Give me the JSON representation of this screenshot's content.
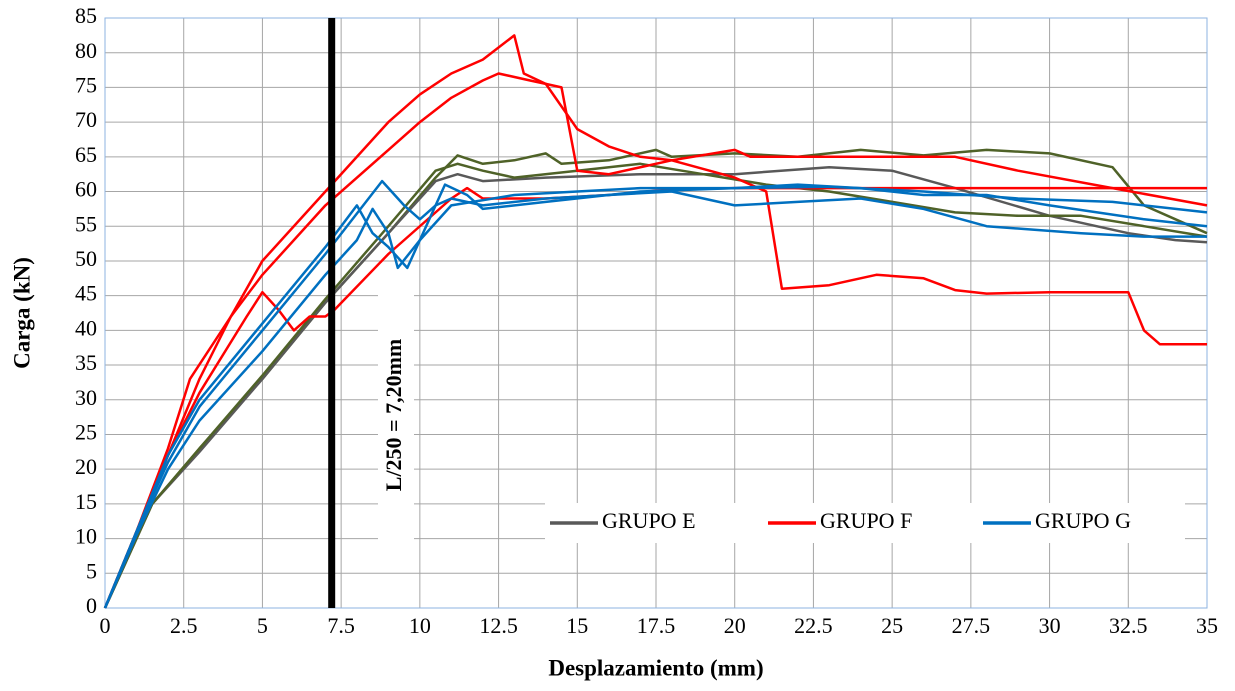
{
  "chart_data": {
    "type": "line",
    "x_label": "Desplazamiento (mm)",
    "y_label": "Carga (kN)",
    "xlim": [
      0,
      35
    ],
    "xticks": [
      0,
      2.5,
      5,
      7.5,
      10,
      12.5,
      15,
      17.5,
      20,
      22.5,
      25,
      27.5,
      30,
      32.5,
      35
    ],
    "ylim": [
      0,
      85
    ],
    "yticks": [
      0,
      5,
      10,
      15,
      20,
      25,
      30,
      35,
      40,
      45,
      50,
      55,
      60,
      65,
      70,
      75,
      80,
      85
    ],
    "grid": true,
    "legend": "lower right",
    "vline": {
      "x": 7.2,
      "label": "L/250 = 7,20mm",
      "color": "#000000"
    },
    "series": [
      {
        "name": "GRUPO E",
        "color": "#595959",
        "curves": [
          {
            "color": "#4f6228",
            "x": [
              0,
              1,
              1.5,
              3,
              5,
              7,
              9,
              10.5,
              11.2,
              12,
              13,
              14,
              14.5,
              16,
              17.5,
              18,
              20,
              22,
              24,
              26,
              28,
              30,
              32,
              33,
              34,
              35
            ],
            "values": [
              0,
              10,
              15,
              23,
              33,
              44,
              54,
              62,
              65.2,
              64,
              64.5,
              65.5,
              64,
              64.5,
              66,
              65,
              65.5,
              65,
              66,
              65.2,
              66,
              65.5,
              63.5,
              58,
              56,
              54
            ]
          },
          {
            "color": "#595959",
            "x": [
              0,
              1,
              1.5,
              3,
              5,
              7,
              9,
              10.5,
              11.2,
              12,
              14,
              17,
              20,
              23,
              25,
              27,
              30,
              32.5,
              34,
              35
            ],
            "values": [
              0,
              10,
              15,
              22.5,
              33,
              44,
              54,
              61.5,
              62.5,
              61.5,
              62,
              62.5,
              62.5,
              63.5,
              63,
              60.5,
              56.5,
              54,
              53,
              52.7
            ]
          },
          {
            "color": "#4f6228",
            "x": [
              0,
              1.5,
              3,
              5,
              7,
              9,
              10.5,
              11.2,
              12,
              13,
              15,
              17,
              19,
              21,
              23,
              25,
              27,
              29,
              31,
              33,
              35
            ],
            "values": [
              0,
              15,
              23,
              33.5,
              44.5,
              55,
              63,
              64,
              63,
              62,
              63,
              64,
              62.5,
              61,
              60,
              58.5,
              57,
              56.5,
              56.5,
              55,
              53.5
            ]
          }
        ]
      },
      {
        "name": "GRUPO F",
        "color": "#ff0000",
        "curves": [
          {
            "color": "#ff0000",
            "x": [
              0,
              1,
              2,
              3,
              4.5,
              5,
              5.5,
              6,
              6.5,
              7,
              7.3,
              9,
              11,
              11.5,
              12,
              14,
              16,
              18,
              20,
              25,
              30,
              35
            ],
            "values": [
              0,
              11,
              22,
              31,
              42,
              45.5,
              43,
              40,
              42,
              42,
              43,
              51,
              59,
              60.5,
              59,
              59,
              59.5,
              60.3,
              60.5,
              60.5,
              60.5,
              60.5
            ]
          },
          {
            "color": "#ff0000",
            "x": [
              0,
              1,
              2,
              2.7,
              4,
              5,
              7,
              9,
              10,
              11,
              12,
              12.5,
              13.5,
              14,
              14.5,
              15,
              16,
              18,
              20,
              20.5,
              23,
              25,
              27,
              29,
              32,
              35
            ],
            "values": [
              0,
              11,
              23,
              33,
              42,
              48,
              58,
              66,
              70,
              73.5,
              76,
              77,
              76,
              75.5,
              75,
              63,
              62.5,
              64.5,
              66,
              65,
              65,
              65,
              65,
              63,
              60.5,
              58
            ]
          },
          {
            "color": "#ff0000",
            "x": [
              0,
              1,
              2,
              3,
              4,
              5,
              7,
              9,
              10,
              11,
              12,
              13,
              13.3,
              14,
              15,
              16,
              17,
              18,
              20,
              21,
              21.5,
              23,
              24.5,
              26,
              27,
              28,
              30,
              32.5,
              33,
              33.5,
              35
            ],
            "values": [
              0,
              11,
              22,
              33,
              42,
              50,
              60,
              70,
              74,
              77,
              79,
              82.5,
              77,
              75.5,
              69,
              66.5,
              65,
              64.5,
              62,
              60,
              46,
              46.5,
              48,
              47.5,
              45.8,
              45.3,
              45.5,
              45.5,
              40,
              38,
              38
            ]
          }
        ]
      },
      {
        "name": "GRUPO G",
        "color": "#0070c0",
        "curves": [
          {
            "color": "#0070c0",
            "x": [
              0,
              1,
              2,
              3,
              5,
              7,
              8,
              8.5,
              9,
              9.3,
              10,
              11,
              13,
              15,
              17,
              20,
              22,
              24,
              26,
              28,
              30,
              33,
              35
            ],
            "values": [
              0,
              10.5,
              20,
              27,
              37,
              48,
              53,
              57.5,
              54,
              49,
              53,
              58,
              59.5,
              60,
              60.5,
              60.5,
              61,
              60.5,
              59.5,
              59.5,
              58,
              56,
              55
            ]
          },
          {
            "color": "#0070c0",
            "x": [
              0,
              1,
              2,
              3,
              5,
              7,
              8.8,
              9.5,
              10,
              10.5,
              11,
              12,
              14,
              16,
              18,
              20,
              22,
              24,
              26,
              28,
              31,
              33,
              35
            ],
            "values": [
              0,
              11,
              21,
              29,
              40,
              51,
              61.5,
              58,
              56,
              58,
              59,
              58,
              59,
              59.5,
              60,
              58,
              58.5,
              59,
              57.5,
              55,
              54,
              53.5,
              53.5
            ]
          },
          {
            "color": "#0070c0",
            "x": [
              0,
              1,
              2,
              3,
              5,
              7,
              8,
              8.5,
              9,
              9.6,
              10.8,
              11.5,
              12,
              14,
              17,
              20,
              23,
              26,
              29,
              32,
              35
            ],
            "values": [
              0,
              11,
              22,
              30,
              41,
              52,
              58,
              54,
              52,
              49,
              61,
              59.5,
              57.5,
              58.5,
              60,
              60.5,
              60.7,
              60,
              59,
              58.5,
              57
            ]
          }
        ]
      }
    ]
  }
}
